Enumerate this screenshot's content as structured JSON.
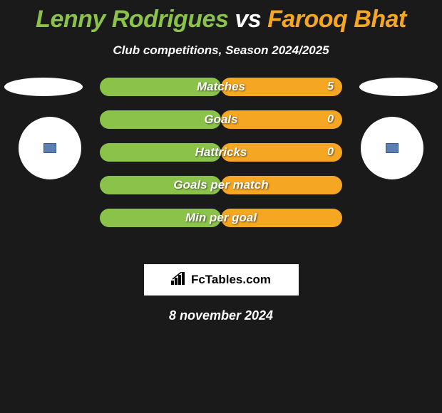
{
  "title": {
    "player1": "Lenny Rodrigues",
    "vs": "vs",
    "player2": "Farooq Bhat"
  },
  "subtitle": "Club competitions, Season 2024/2025",
  "colors": {
    "player1": "#8bc34a",
    "player2": "#f5a623",
    "background": "#1a1a1a",
    "text": "#ffffff",
    "badge": "#5b7fb3"
  },
  "stats": [
    {
      "label": "Matches",
      "left_width": 50,
      "right_width": 50,
      "left_value": "",
      "right_value": "5"
    },
    {
      "label": "Goals",
      "left_width": 50,
      "right_width": 50,
      "left_value": "",
      "right_value": "0"
    },
    {
      "label": "Hattricks",
      "left_width": 50,
      "right_width": 50,
      "left_value": "",
      "right_value": "0"
    },
    {
      "label": "Goals per match",
      "left_width": 50,
      "right_width": 50,
      "left_value": "",
      "right_value": ""
    },
    {
      "label": "Min per goal",
      "left_width": 50,
      "right_width": 50,
      "left_value": "",
      "right_value": ""
    }
  ],
  "brand": "FcTables.com",
  "date": "8 november 2024"
}
